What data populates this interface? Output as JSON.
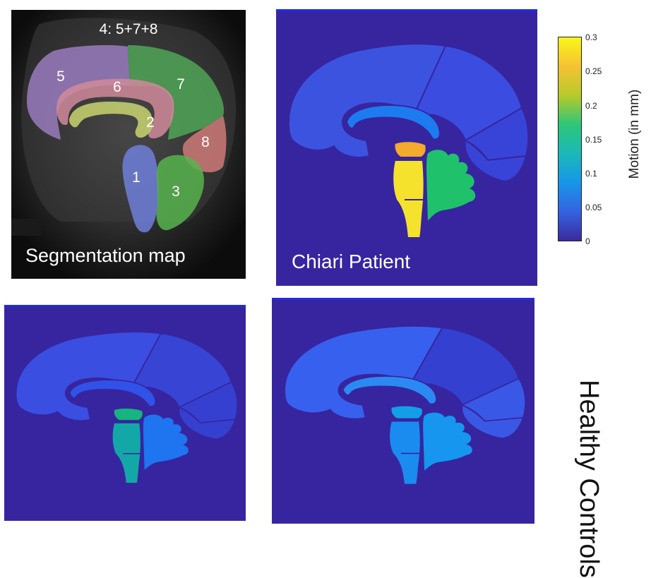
{
  "segmentation_panel": {
    "combination_label": "4: 5+7+8",
    "label": "Segmentation map",
    "regions": [
      {
        "number": "1",
        "color": "#6f7fd9"
      },
      {
        "number": "2",
        "color": "#c9d36e"
      },
      {
        "number": "3",
        "color": "#57b34e"
      },
      {
        "number": "5",
        "color": "#9a7bbd"
      },
      {
        "number": "6",
        "color": "#d08a9a"
      },
      {
        "number": "7",
        "color": "#4fa556"
      },
      {
        "number": "8",
        "color": "#cf7a78"
      }
    ]
  },
  "chiari_panel": {
    "label": "Chiari Patient",
    "region_colors": {
      "cerebrum_front": "#3c53e0",
      "cerebrum_top": "#3a4de0",
      "cerebrum_back": "#3844d8",
      "cerebrum_lower": "#3844d8",
      "corpus_callosum": "#1d7bf0",
      "pons_upper": "#f3aa2d",
      "brainstem": "#f5e22d",
      "cerebellum": "#1fc26a"
    }
  },
  "healthy_control_1": {
    "region_colors": {
      "cerebrum_front": "#3b4ee2",
      "cerebrum_top": "#3744d4",
      "cerebrum_back": "#3640d0",
      "cerebrum_lower": "#3640d0",
      "corpus_callosum": "#3052e8",
      "pons_upper": "#17b480",
      "brainstem": "#13a8a8",
      "cerebellum": "#1f74f0"
    }
  },
  "healthy_control_2": {
    "region_colors": {
      "cerebrum_front": "#3860ee",
      "cerebrum_top": "#3440d0",
      "cerebrum_back": "#3a58e6",
      "cerebrum_lower": "#3a58e6",
      "corpus_callosum": "#2a8af2",
      "pons_upper": "#159ee8",
      "brainstem": "#1a8cf0",
      "cerebellum": "#1696ee"
    }
  },
  "background_color": "#3725a0",
  "colorbar": {
    "title": "Motion (in mm)",
    "ticks": [
      "0.3",
      "0.25",
      "0.2",
      "0.15",
      "0.1",
      "0.05",
      "0"
    ],
    "range": [
      0,
      0.3
    ],
    "colors": [
      "#3b2a9e",
      "#3463e0",
      "#1797e8",
      "#1bb9b9",
      "#2ec678",
      "#b7ca2a",
      "#f5c232",
      "#f8f719"
    ]
  },
  "healthy_controls_label": "Healthy Controls"
}
